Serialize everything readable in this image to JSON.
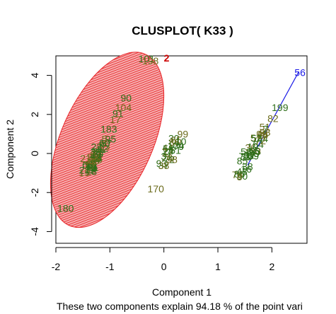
{
  "chart_data": {
    "type": "scatter",
    "title": "CLUSPLOT( K33 )",
    "xlabel": "Component 1",
    "ylabel": "Component 2",
    "subtitle": "These two components explain 94.18 % of the point vari",
    "xlim": [
      -2.0,
      2.65
    ],
    "ylim": [
      -4.6,
      5.0
    ],
    "xticks": [
      -2,
      -1,
      0,
      1,
      2
    ],
    "yticks": [
      -4,
      -2,
      0,
      2,
      4
    ],
    "colors": {
      "ellipse": "#e8262a",
      "ellipse_text": "#cc0000",
      "points": "#2e6e1a",
      "points_alt": "#6b6b1c",
      "cluster2_line": "#1a1ae6"
    },
    "cluster1_ellipse": {
      "center": [
        -1.05,
        0.7
      ],
      "semi_axes": [
        1.0,
        4.0
      ],
      "angle_deg": -24
    },
    "cluster1_label": {
      "text": "2",
      "x": 0.05,
      "y": 4.85
    },
    "cluster2_line": {
      "from": [
        1.55,
        -0.6
      ],
      "to": [
        2.5,
        4.2
      ]
    },
    "cluster2_label": {
      "text": "56",
      "x": 2.52,
      "y": 4.1
    },
    "labels": [
      {
        "text": "101",
        "x": -0.32,
        "y": 4.8
      },
      {
        "text": "198",
        "x": -0.25,
        "y": 4.7
      },
      {
        "text": "90",
        "x": -0.7,
        "y": 2.8
      },
      {
        "text": "104",
        "x": -0.75,
        "y": 2.3
      },
      {
        "text": "91",
        "x": -0.85,
        "y": 2.0
      },
      {
        "text": "17",
        "x": -0.9,
        "y": 1.7
      },
      {
        "text": "183",
        "x": -1.02,
        "y": 1.2
      },
      {
        "text": "5",
        "x": -1.1,
        "y": 0.7
      },
      {
        "text": "22",
        "x": -1.25,
        "y": 0.3
      },
      {
        "text": "21",
        "x": -1.45,
        "y": -0.3
      },
      {
        "text": "212",
        "x": -1.42,
        "y": -0.9
      },
      {
        "text": "170",
        "x": -0.15,
        "y": -1.85
      },
      {
        "text": "180",
        "x": -1.82,
        "y": -2.85
      },
      {
        "text": "99",
        "x": 0.35,
        "y": 0.95
      },
      {
        "text": "104",
        "x": 0.22,
        "y": 0.35
      },
      {
        "text": "58",
        "x": 0.15,
        "y": -0.35
      },
      {
        "text": "199",
        "x": 2.15,
        "y": 2.3
      },
      {
        "text": "82",
        "x": 2.02,
        "y": 1.75
      },
      {
        "text": "7",
        "x": 1.88,
        "y": 1.2
      },
      {
        "text": "8",
        "x": 1.4,
        "y": -1.25
      }
    ]
  }
}
